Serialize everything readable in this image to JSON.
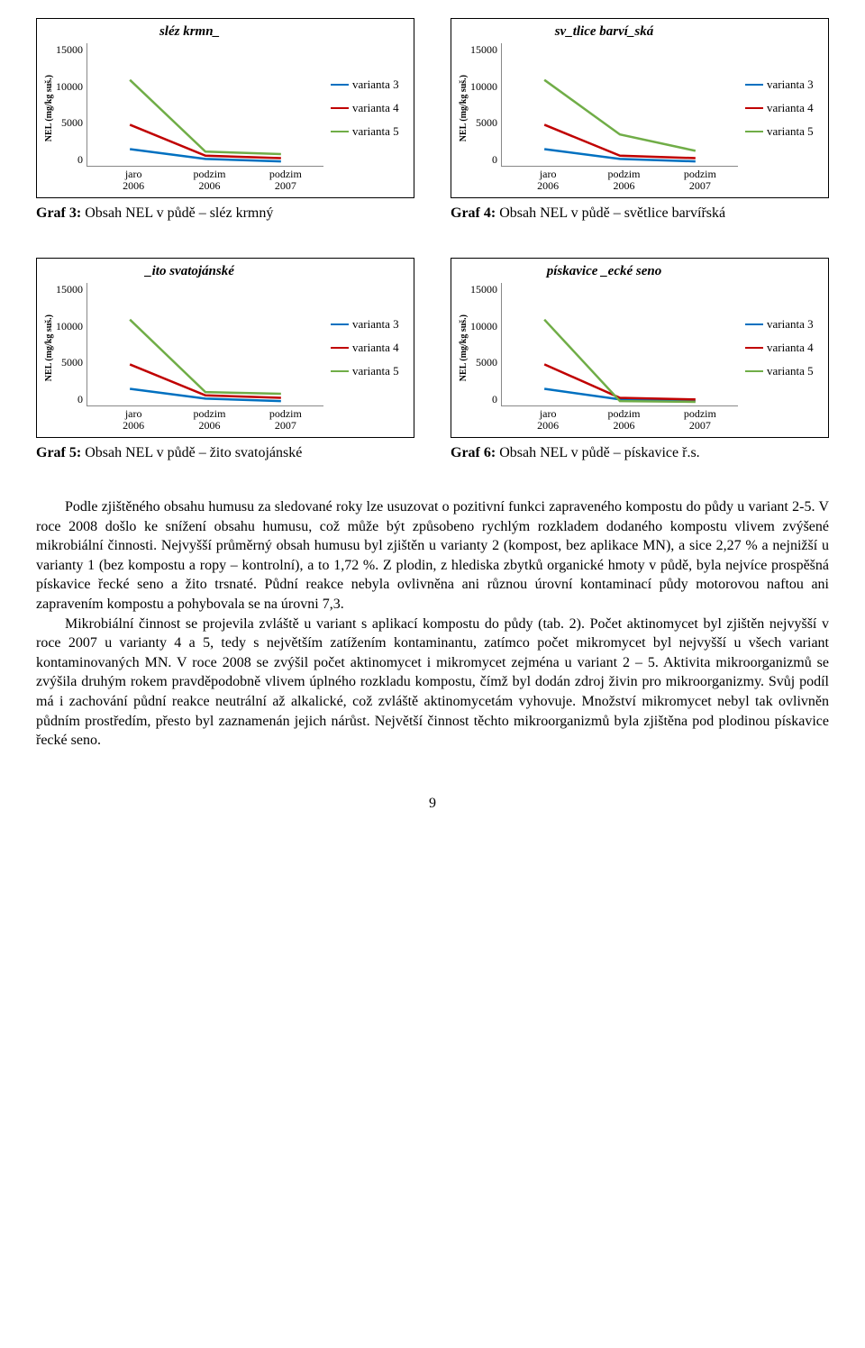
{
  "charts": [
    {
      "title": "sléz krmn_",
      "ylabel": "NEL (mg/kg suš.)",
      "yticks": [
        15000,
        10000,
        5000,
        0
      ],
      "ylim": [
        0,
        15000
      ],
      "xlabels": [
        "jaro\n2006",
        "podzim\n2006",
        "podzim\n2007"
      ],
      "series": [
        {
          "name": "varianta 3",
          "color": "#0070c0",
          "values": [
            2000,
            800,
            500
          ]
        },
        {
          "name": "varianta 4",
          "color": "#c00000",
          "values": [
            5000,
            1200,
            900
          ]
        },
        {
          "name": "varianta 5",
          "color": "#70ad47",
          "values": [
            10500,
            1700,
            1400
          ]
        }
      ],
      "caption_bold": "Graf 3:",
      "caption_rest": "Obsah NEL v půdě – sléz krmný"
    },
    {
      "title": "sv_tlice barví_ská",
      "ylabel": "NEL (mg/kg suš.)",
      "yticks": [
        15000,
        10000,
        5000,
        0
      ],
      "ylim": [
        0,
        15000
      ],
      "xlabels": [
        "jaro\n2006",
        "podzim\n2006",
        "podzim\n2007"
      ],
      "series": [
        {
          "name": "varianta 3",
          "color": "#0070c0",
          "values": [
            2000,
            800,
            500
          ]
        },
        {
          "name": "varianta 4",
          "color": "#c00000",
          "values": [
            5000,
            1200,
            900
          ]
        },
        {
          "name": "varianta 5",
          "color": "#70ad47",
          "values": [
            10500,
            3800,
            1800
          ]
        }
      ],
      "caption_bold": "Graf 4:",
      "caption_rest": "Obsah NEL v půdě – světlice barvířská"
    },
    {
      "title": "_ito svatojánské",
      "ylabel": "NEL (mg/kg suš.)",
      "yticks": [
        15000,
        10000,
        5000,
        0
      ],
      "ylim": [
        0,
        15000
      ],
      "xlabels": [
        "jaro\n2006",
        "podzim\n2006",
        "podzim\n2007"
      ],
      "series": [
        {
          "name": "varianta 3",
          "color": "#0070c0",
          "values": [
            2000,
            800,
            500
          ]
        },
        {
          "name": "varianta 4",
          "color": "#c00000",
          "values": [
            5000,
            1200,
            900
          ]
        },
        {
          "name": "varianta 5",
          "color": "#70ad47",
          "values": [
            10500,
            1600,
            1400
          ]
        }
      ],
      "caption_bold": "Graf 5:",
      "caption_rest": "Obsah NEL v půdě – žito svatojánské"
    },
    {
      "title": "pískavice _ecké seno",
      "ylabel": "NEL (mg/kg suš.)",
      "yticks": [
        15000,
        10000,
        5000,
        0
      ],
      "ylim": [
        0,
        15000
      ],
      "xlabels": [
        "jaro\n2006",
        "podzim\n2006",
        "podzim\n2007"
      ],
      "series": [
        {
          "name": "varianta 3",
          "color": "#0070c0",
          "values": [
            2000,
            700,
            500
          ]
        },
        {
          "name": "varianta 4",
          "color": "#c00000",
          "values": [
            5000,
            900,
            700
          ]
        },
        {
          "name": "varianta 5",
          "color": "#70ad47",
          "values": [
            10500,
            500,
            400
          ]
        }
      ],
      "caption_bold": "Graf 6:",
      "caption_rest": "Obsah NEL v půdě – pískavice ř.s."
    }
  ],
  "paragraphs": [
    "Podle zjištěného obsahu humusu za sledované roky lze usuzovat o pozitivní funkci zapraveného kompostu do půdy u variant 2-5. V roce 2008 došlo ke snížení obsahu humusu, což může být způsobeno rychlým rozkladem dodaného kompostu vlivem zvýšené mikrobiální činnosti. Nejvyšší průměrný obsah humusu byl zjištěn u varianty 2 (kompost, bez aplikace MN), a sice 2,27 % a nejnižší u varianty 1 (bez kompostu a ropy – kontrolní), a to 1,72 %. Z plodin, z hlediska zbytků organické hmoty v půdě, byla nejvíce prospěšná pískavice řecké seno a žito trsnaté. Půdní reakce nebyla ovlivněna ani různou úrovní kontaminací půdy motorovou naftou ani zapravením kompostu a pohybovala se na úrovni 7,3.",
    "Mikrobiální činnost se projevila zvláště u variant s aplikací kompostu do půdy (tab. 2). Počet aktinomycet byl zjištěn nejvyšší v roce 2007 u varianty 4 a 5, tedy s největším zatížením kontaminantu, zatímco počet mikromycet byl nejvyšší u všech variant kontaminovaných MN. V roce 2008 se zvýšil počet aktinomycet i mikromycet zejména u variant 2 – 5. Aktivita mikroorganizmů se zvýšila druhým rokem pravděpodobně vlivem úplného rozkladu kompostu, čímž byl dodán zdroj živin pro mikroorganizmy. Svůj podíl má i zachování půdní reakce neutrální až alkalické, což zvláště aktinomycetám vyhovuje. Množství mikromycet nebyl tak ovlivněn půdním prostředím, přesto byl zaznamenán jejich nárůst. Největší činnost těchto mikroorganizmů byla zjištěna pod plodinou pískavice řecké seno."
  ],
  "page_number": "9",
  "line_width": 2.5,
  "xpositions": [
    0.18,
    0.5,
    0.82
  ]
}
